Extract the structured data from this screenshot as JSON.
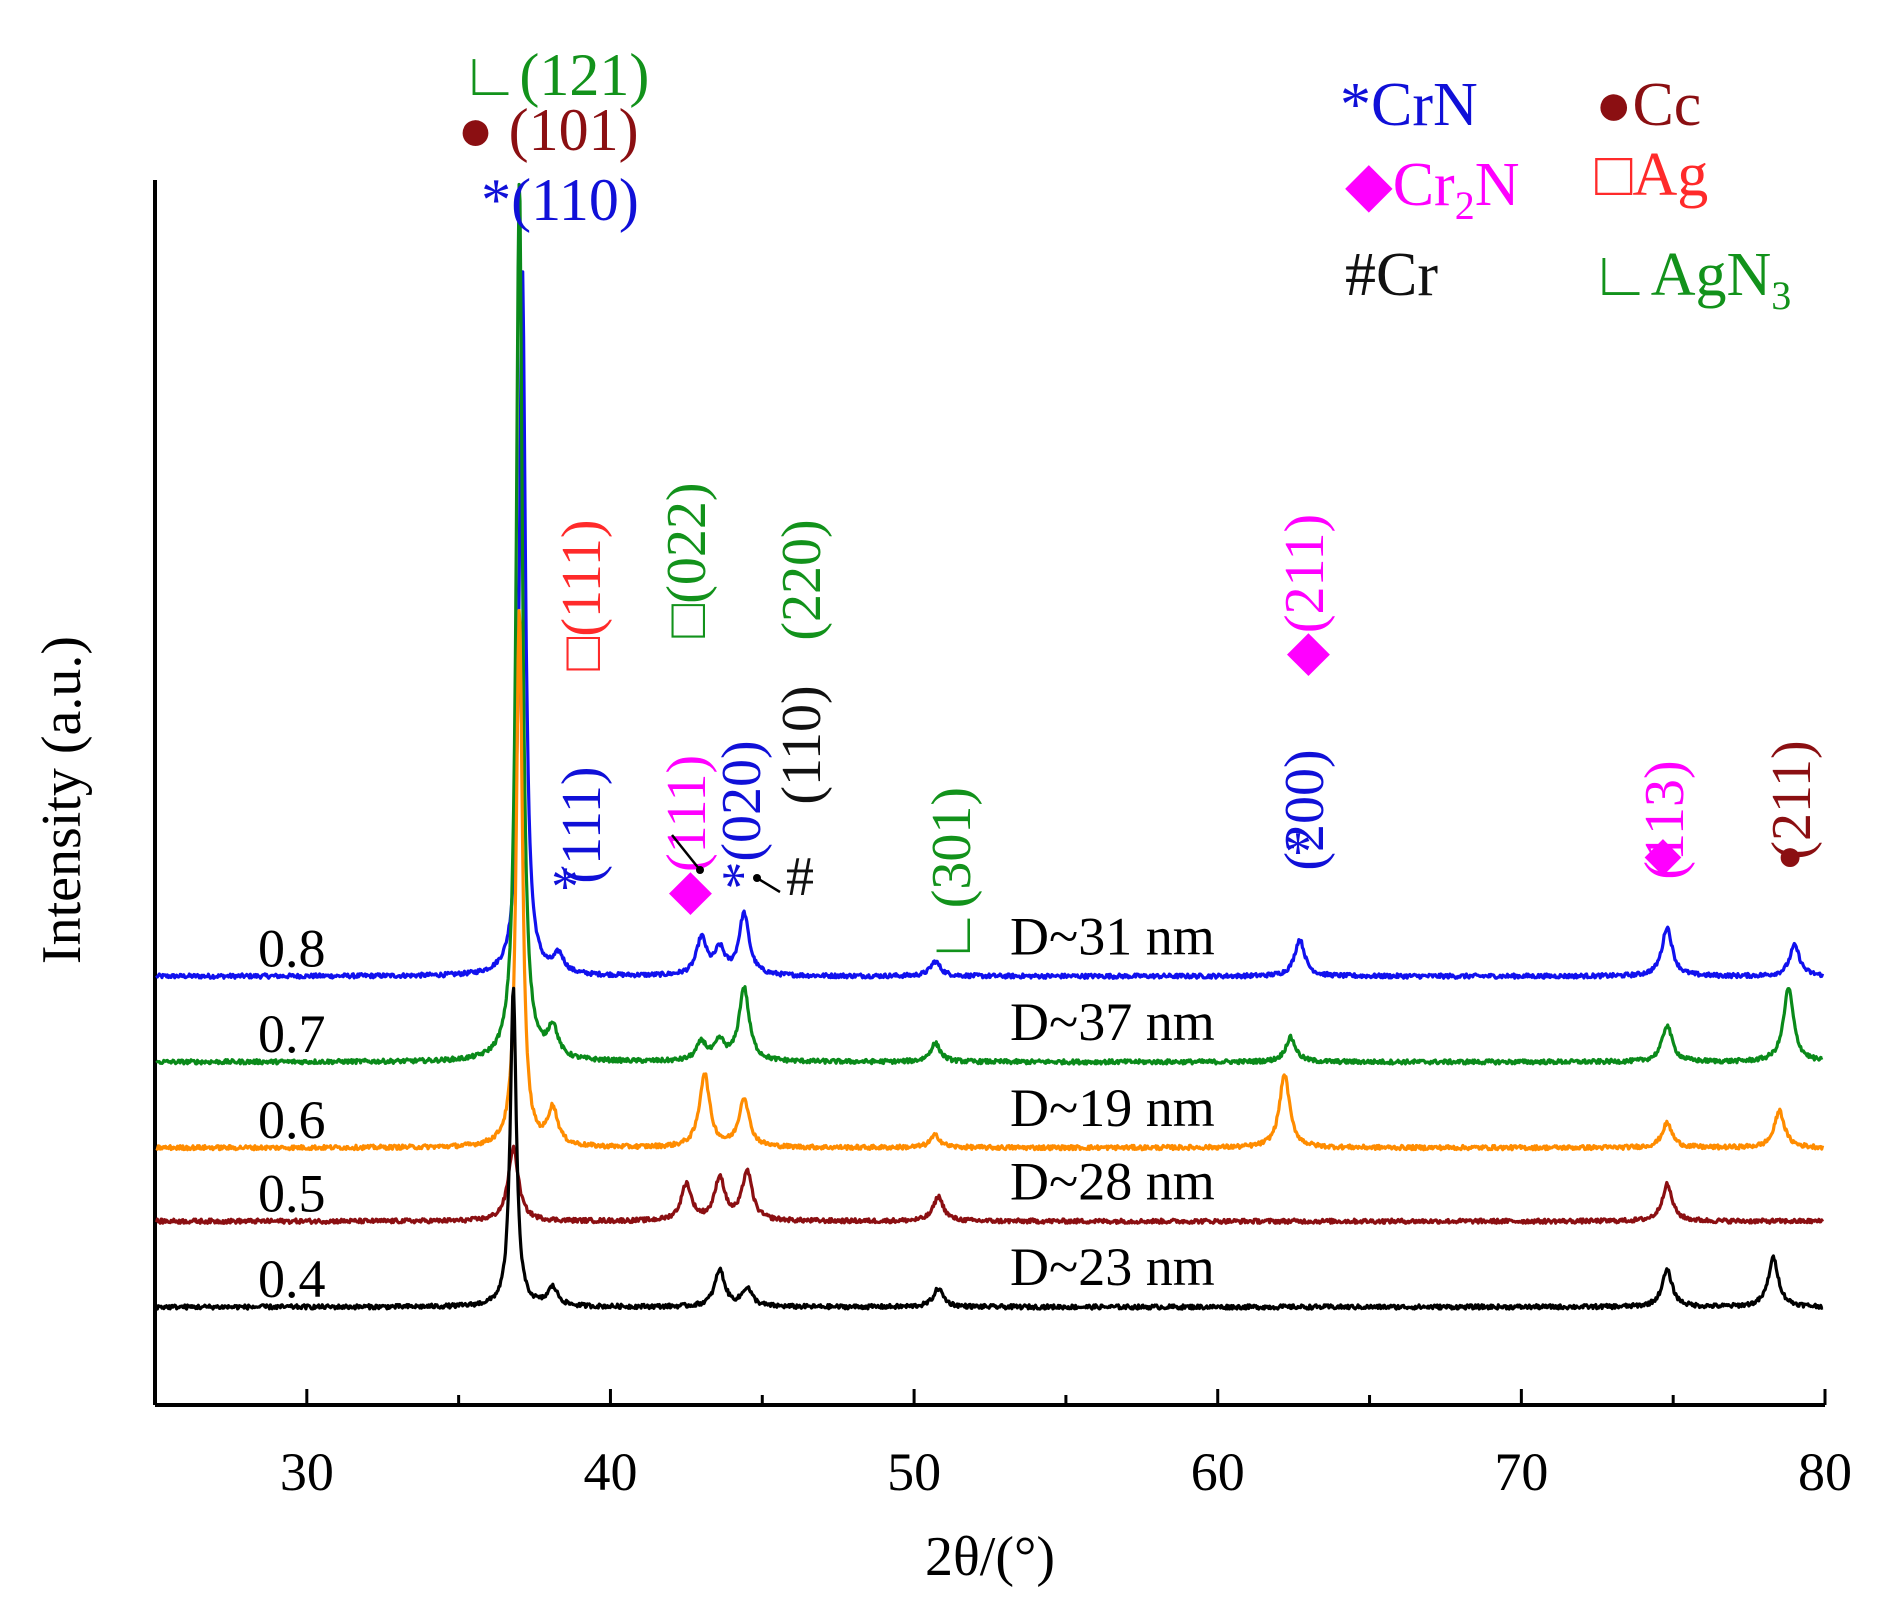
{
  "chart_data": {
    "type": "line",
    "xlabel": "2θ/(°)",
    "ylabel": "Intensity (a.u.)",
    "xlim": [
      25,
      80
    ],
    "ylim": [
      0,
      100
    ],
    "x_ticks": [
      "30",
      "40",
      "50",
      "60",
      "70",
      "80"
    ],
    "grid": false,
    "legend_position": "top-right",
    "legend": [
      {
        "symbol": "*",
        "label": "CrN",
        "color": "#1010d8"
      },
      {
        "symbol": "●",
        "label": "Cc",
        "color": "#8b0f12"
      },
      {
        "symbol": "◆",
        "label": "Cr",
        "sub": "2",
        "tail": "N",
        "color": "#ff00ff"
      },
      {
        "symbol": "□",
        "label": "Ag",
        "color": "#ff2a2a"
      },
      {
        "symbol": "#",
        "label": "Cr",
        "color": "#111111"
      },
      {
        "symbol": "∟",
        "label": "AgN",
        "sub": "3",
        "color": "#12921b"
      }
    ],
    "series": [
      {
        "name": "0.8",
        "size_label": "D~31 nm",
        "color": "#1111ee",
        "baseline": 35,
        "peaks": [
          [
            37.1,
            58
          ],
          [
            38.3,
            1.5
          ],
          [
            43.0,
            3
          ],
          [
            43.6,
            2
          ],
          [
            44.4,
            5
          ],
          [
            50.7,
            1.2
          ],
          [
            62.7,
            3
          ],
          [
            74.8,
            4
          ],
          [
            79.0,
            2.5
          ]
        ]
      },
      {
        "name": "0.7",
        "size_label": "D~37 nm",
        "color": "#0a8a1a",
        "baseline": 28,
        "peaks": [
          [
            37.0,
            72
          ],
          [
            38.1,
            2.5
          ],
          [
            43.0,
            1.5
          ],
          [
            43.6,
            1.5
          ],
          [
            44.4,
            6
          ],
          [
            50.7,
            1.5
          ],
          [
            62.4,
            2
          ],
          [
            74.8,
            3
          ],
          [
            78.8,
            6
          ]
        ]
      },
      {
        "name": "0.6",
        "size_label": "D~19 nm",
        "color": "#ff8c00",
        "baseline": 21,
        "peaks": [
          [
            37.0,
            44
          ],
          [
            38.1,
            3
          ],
          [
            43.1,
            6
          ],
          [
            44.4,
            4
          ],
          [
            50.7,
            1
          ],
          [
            62.2,
            6
          ],
          [
            74.8,
            2
          ],
          [
            78.5,
            3
          ]
        ]
      },
      {
        "name": "0.5",
        "size_label": "D~28 nm",
        "color": "#8b0f12",
        "baseline": 15,
        "peaks": [
          [
            36.8,
            6
          ],
          [
            42.5,
            3
          ],
          [
            43.6,
            3.5
          ],
          [
            44.5,
            4
          ],
          [
            50.8,
            2
          ],
          [
            74.8,
            3
          ]
        ]
      },
      {
        "name": "0.4",
        "size_label": "D~23 nm",
        "color": "#000000",
        "baseline": 8,
        "peaks": [
          [
            36.8,
            26
          ],
          [
            38.1,
            1.5
          ],
          [
            43.6,
            3
          ],
          [
            44.5,
            1.5
          ],
          [
            50.8,
            1.5
          ],
          [
            74.8,
            3
          ],
          [
            78.3,
            4
          ]
        ]
      }
    ],
    "annotations": [
      {
        "text": "∟(121)",
        "color": "#12921b"
      },
      {
        "text": "● (101)",
        "color": "#8b0f12"
      },
      {
        "text": "*(110)",
        "color": "#1010d8"
      },
      {
        "text": "(111)",
        "color": "#1010d8"
      },
      {
        "text": "□(111)",
        "color": "#ff2a2a"
      },
      {
        "text": "*",
        "color": "#1010d8"
      },
      {
        "text": "◆(111)",
        "color": "#ff00ff"
      },
      {
        "text": "□(022)",
        "color": "#12921b"
      },
      {
        "text": "*(020)",
        "color": "#1010d8"
      },
      {
        "text": "(110)",
        "color": "#111111"
      },
      {
        "text": "#",
        "color": "#111111"
      },
      {
        "text": "(220)",
        "color": "#12921b"
      },
      {
        "text": "∟(301)",
        "color": "#12921b"
      },
      {
        "text": "(200)",
        "color": "#1010d8"
      },
      {
        "text": "◆(211)",
        "color": "#ff00ff"
      },
      {
        "text": "*",
        "color": "#1010d8"
      },
      {
        "text": "(113)",
        "color": "#ff00ff"
      },
      {
        "text": "◆",
        "color": "#ff00ff"
      },
      {
        "text": "(211)",
        "color": "#8b0f12"
      },
      {
        "text": "●",
        "color": "#8b0f12"
      }
    ]
  }
}
